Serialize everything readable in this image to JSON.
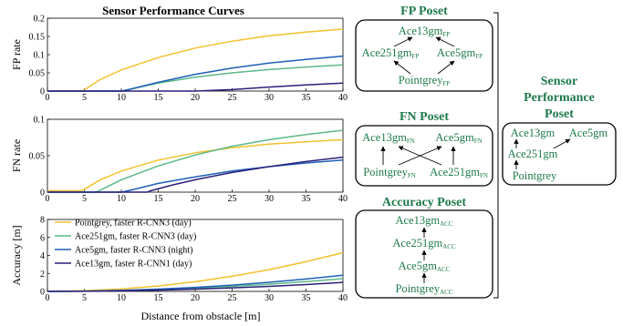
{
  "title": "Sensor Performance Curves",
  "xlabel": "Distance from obstacle [m]",
  "colors": {
    "pointgrey": "#f2c12e",
    "ace251": "#5cb88a",
    "ace5": "#1f5fb8",
    "ace13": "#2b1f78",
    "poset": "#1e7a4b"
  },
  "legend": [
    {
      "key": "pointgrey",
      "label": "Pointgrey, faster R-CNN3 (day)"
    },
    {
      "key": "ace251",
      "label": "Ace251gm, faster R-CNN3 (day)"
    },
    {
      "key": "ace5",
      "label": "Ace5gm, faster R-CNN3 (night)"
    },
    {
      "key": "ace13",
      "label": "Ace13gm, faster R-CNN1 (day)"
    }
  ],
  "chart_data": [
    {
      "type": "line",
      "ylabel": "FP rate",
      "xlim": [
        0,
        40
      ],
      "ylim": [
        0,
        0.2
      ],
      "xticks": [
        "0",
        "5",
        "10",
        "15",
        "20",
        "25",
        "30",
        "35",
        "40"
      ],
      "yticks": [
        "0",
        "0.05",
        "0.1",
        "0.15",
        "0.2"
      ],
      "series": [
        {
          "key": "pointgrey",
          "x": [
            0,
            4.5,
            5,
            7,
            10,
            15,
            20,
            25,
            30,
            35,
            40
          ],
          "y": [
            0,
            0,
            0.003,
            0.03,
            0.058,
            0.092,
            0.118,
            0.137,
            0.152,
            0.162,
            0.17
          ]
        },
        {
          "key": "ace251",
          "x": [
            0,
            10,
            11,
            15,
            20,
            25,
            30,
            35,
            40
          ],
          "y": [
            0,
            0,
            0.004,
            0.022,
            0.038,
            0.05,
            0.059,
            0.066,
            0.072
          ]
        },
        {
          "key": "ace5",
          "x": [
            0,
            10,
            11,
            15,
            20,
            25,
            30,
            35,
            40
          ],
          "y": [
            0,
            0,
            0.004,
            0.024,
            0.046,
            0.063,
            0.077,
            0.087,
            0.096
          ]
        },
        {
          "key": "ace13",
          "x": [
            0,
            20,
            25,
            30,
            35,
            40
          ],
          "y": [
            0,
            0,
            0.004,
            0.011,
            0.017,
            0.022
          ]
        }
      ]
    },
    {
      "type": "line",
      "ylabel": "FN rate",
      "xlim": [
        0,
        40
      ],
      "ylim": [
        0,
        0.1
      ],
      "xticks": [
        "0",
        "5",
        "10",
        "15",
        "20",
        "25",
        "30",
        "35",
        "40"
      ],
      "yticks": [
        "0",
        "0.05",
        "0.1"
      ],
      "series": [
        {
          "key": "pointgrey",
          "x": [
            0,
            4.5,
            5,
            7,
            10,
            15,
            20,
            25,
            30,
            35,
            40
          ],
          "y": [
            0.002,
            0.002,
            0.004,
            0.016,
            0.029,
            0.044,
            0.054,
            0.061,
            0.066,
            0.069,
            0.072
          ]
        },
        {
          "key": "ace251",
          "x": [
            0,
            6.5,
            7,
            10,
            15,
            20,
            25,
            30,
            35,
            40
          ],
          "y": [
            0,
            0,
            0.002,
            0.017,
            0.036,
            0.051,
            0.063,
            0.072,
            0.079,
            0.085
          ]
        },
        {
          "key": "ace5",
          "x": [
            0,
            10,
            11,
            15,
            20,
            25,
            30,
            35,
            40
          ],
          "y": [
            0,
            0,
            0.002,
            0.012,
            0.021,
            0.029,
            0.035,
            0.04,
            0.044
          ]
        },
        {
          "key": "ace13",
          "x": [
            0,
            13.5,
            14,
            17,
            20,
            25,
            30,
            35,
            40
          ],
          "y": [
            0,
            0,
            0.002,
            0.01,
            0.017,
            0.027,
            0.035,
            0.042,
            0.048
          ]
        }
      ]
    },
    {
      "type": "line",
      "ylabel": "Accuracy [m]",
      "xlim": [
        0,
        40
      ],
      "ylim": [
        0,
        8
      ],
      "xticks": [
        "0",
        "5",
        "10",
        "15",
        "20",
        "25",
        "30",
        "35",
        "40"
      ],
      "yticks": [
        "0",
        "2",
        "4",
        "6",
        "8"
      ],
      "series": [
        {
          "key": "pointgrey",
          "x": [
            0,
            5,
            10,
            15,
            20,
            25,
            30,
            35,
            40
          ],
          "y": [
            0,
            0.07,
            0.27,
            0.6,
            1.07,
            1.68,
            2.42,
            3.3,
            4.3
          ]
        },
        {
          "key": "ace251",
          "x": [
            0,
            5,
            10,
            15,
            20,
            25,
            30,
            35,
            40
          ],
          "y": [
            0,
            0.02,
            0.09,
            0.2,
            0.36,
            0.56,
            0.8,
            1.09,
            1.42
          ]
        },
        {
          "key": "ace5",
          "x": [
            0,
            5,
            10,
            15,
            20,
            25,
            30,
            35,
            40
          ],
          "y": [
            0,
            0.03,
            0.11,
            0.25,
            0.45,
            0.7,
            1.01,
            1.38,
            1.8
          ]
        },
        {
          "key": "ace13",
          "x": [
            0,
            5,
            10,
            15,
            20,
            25,
            30,
            35,
            40
          ],
          "y": [
            0,
            0.015,
            0.06,
            0.14,
            0.25,
            0.39,
            0.56,
            0.76,
            1.0
          ]
        }
      ]
    }
  ],
  "posets": {
    "fp": {
      "title": "FP Poset",
      "top": {
        "base": "Ace13gm",
        "sub": "FP"
      },
      "left": {
        "base": "Ace251gm",
        "sub": "FP"
      },
      "right": {
        "base": "Ace5gm",
        "sub": "FP"
      },
      "bottom": {
        "base": "Pointgrey",
        "sub": "FP"
      }
    },
    "fn": {
      "title": "FN Poset",
      "tl": {
        "base": "Ace13gm",
        "sub": "FN"
      },
      "tr": {
        "base": "Ace5gm",
        "sub": "FN"
      },
      "bl": {
        "base": "Pointgrey",
        "sub": "FN"
      },
      "br": {
        "base": "Ace251gm",
        "sub": "FN"
      }
    },
    "acc": {
      "title": "Accuracy Poset",
      "n1": {
        "base": "Ace13gm",
        "sub": "ACC"
      },
      "n2": {
        "base": "Ace251gm",
        "sub": "ACC"
      },
      "n3": {
        "base": "Ace5gm",
        "sub": "ACC"
      },
      "n4": {
        "base": "Pointgrey",
        "sub": "ACC"
      }
    },
    "sensor": {
      "title_l1": "Sensor",
      "title_l2": "Performance",
      "title_l3": "Poset",
      "tl": "Ace13gm",
      "tr": "Ace5gm",
      "mid": "Ace251gm",
      "bottom": "Pointgrey"
    }
  }
}
